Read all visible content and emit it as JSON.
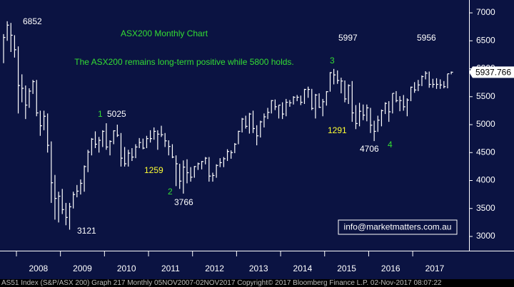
{
  "chart_data": {
    "type": "hlc",
    "title": "ASX200 Monthly Chart",
    "subtitle": "The ASX200 remains long-term positive while 5800 holds.",
    "footer": "AS51 Index (S&P/ASX 200) Graph 217  Monthly 05NOV2007-02NOV2017  Copyright© 2017 Bloomberg Finance L.P.  02-Nov-2017 08:07:22",
    "watermark": "info@marketmatters.com.au",
    "categories": [
      "2008",
      "2009",
      "2010",
      "2011",
      "2012",
      "2013",
      "2014",
      "2015",
      "2016",
      "2017"
    ],
    "ylim": [
      2745,
      7230
    ],
    "yticks": [
      3000,
      3500,
      4000,
      4500,
      5000,
      5500,
      6000,
      6500,
      7000
    ],
    "grid": false,
    "bar_color": "#ffffff",
    "background": "#0b1342",
    "last_price": 5937.766,
    "annotations": [
      {
        "text": "6852",
        "color": "#ffffff"
      },
      {
        "text": "5025",
        "color": "#ffffff"
      },
      {
        "text": "3121",
        "color": "#ffffff"
      },
      {
        "text": "3766",
        "color": "#ffffff"
      },
      {
        "text": "5997",
        "color": "#ffffff"
      },
      {
        "text": "5956",
        "color": "#ffffff"
      },
      {
        "text": "4706",
        "color": "#ffffff"
      },
      {
        "text": "1",
        "color": "#33dd33"
      },
      {
        "text": "2",
        "color": "#33dd33"
      },
      {
        "text": "3",
        "color": "#33dd33"
      },
      {
        "text": "4",
        "color": "#33dd33"
      },
      {
        "text": "1259",
        "color": "#ffff33"
      },
      {
        "text": "1291",
        "color": "#ffff33"
      }
    ],
    "series": [
      {
        "name": "AS51 Index",
        "high": [
          6620,
          6850,
          6820,
          6600,
          6400,
          5900,
          5700,
          5650,
          5800,
          5800,
          5250,
          5250,
          5200,
          4700,
          4100,
          3800,
          3850,
          3600,
          3600,
          3800,
          3920,
          4020,
          4270,
          4550,
          4760,
          4880,
          4780,
          4900,
          5025,
          4720,
          4900,
          5000,
          4850,
          4600,
          4550,
          4580,
          4650,
          4760,
          4750,
          4800,
          4900,
          4950,
          4900,
          4980,
          4850,
          4720,
          4650,
          4450,
          4300,
          4360,
          4380,
          4240,
          4260,
          4320,
          4350,
          4420,
          4420,
          4140,
          4290,
          4400,
          4420,
          4560,
          4540,
          4670,
          4890,
          5120,
          5160,
          5210,
          5250,
          4990,
          5070,
          5200,
          5300,
          5440,
          5450,
          5350,
          5400,
          5460,
          5440,
          5510,
          5530,
          5520,
          5640,
          5680,
          5640,
          5550,
          5560,
          5460,
          5600,
          5940,
          5997,
          5970,
          5840,
          5790,
          5720,
          5780,
          5350,
          5390,
          5360,
          5360,
          5300,
          5070,
          5160,
          5270,
          5400,
          5420,
          5560,
          5600,
          5510,
          5530,
          5470,
          5680,
          5760,
          5800,
          5880,
          5956,
          5950,
          5820,
          5830,
          5810,
          5780,
          5910,
          5950
        ],
        "low": [
          6100,
          6500,
          6300,
          6200,
          5200,
          5400,
          5100,
          5300,
          5550,
          5150,
          4800,
          4900,
          4500,
          3600,
          3300,
          3250,
          3400,
          3200,
          3121,
          3500,
          3700,
          3750,
          3800,
          4150,
          4450,
          4580,
          4500,
          4600,
          4550,
          4450,
          4650,
          4780,
          4250,
          4250,
          4250,
          4350,
          4400,
          4580,
          4560,
          4580,
          4680,
          4730,
          4550,
          4780,
          4600,
          4450,
          4400,
          3900,
          3850,
          3766,
          3950,
          3980,
          4050,
          4190,
          4200,
          4290,
          3980,
          3980,
          4050,
          4240,
          4240,
          4350,
          4390,
          4490,
          4650,
          4860,
          4930,
          4840,
          4850,
          4630,
          4770,
          4950,
          5100,
          5200,
          5260,
          5110,
          5100,
          5150,
          5320,
          5360,
          5420,
          5350,
          5370,
          5480,
          5260,
          5110,
          5300,
          5150,
          5340,
          5590,
          5720,
          5730,
          5560,
          5400,
          5370,
          5050,
          4920,
          4970,
          5080,
          5060,
          4850,
          4706,
          4870,
          4970,
          5190,
          5050,
          5200,
          5400,
          5240,
          5250,
          5150,
          5420,
          5570,
          5600,
          5690,
          5810,
          5660,
          5660,
          5640,
          5640,
          5650,
          5650,
          5900
        ],
        "close": [
          6560,
          6780,
          6600,
          6340,
          5700,
          5650,
          5350,
          5600,
          5770,
          5210,
          4980,
          5150,
          4630,
          3960,
          3680,
          3720,
          3480,
          3340,
          3530,
          3750,
          3810,
          3950,
          4250,
          4510,
          4740,
          4650,
          4720,
          4880,
          4600,
          4700,
          4890,
          4810,
          4400,
          4300,
          4490,
          4420,
          4600,
          4680,
          4580,
          4750,
          4750,
          4880,
          4830,
          4820,
          4710,
          4610,
          4420,
          4300,
          3990,
          4240,
          4140,
          4060,
          4250,
          4300,
          4340,
          4400,
          4080,
          4090,
          4270,
          4320,
          4390,
          4520,
          4500,
          4650,
          4880,
          5100,
          4970,
          5190,
          4930,
          4800,
          5050,
          5140,
          5220,
          5430,
          5320,
          5350,
          5190,
          5400,
          5390,
          5490,
          5490,
          5400,
          5630,
          5630,
          5290,
          5530,
          5310,
          5410,
          5590,
          5930,
          5890,
          5790,
          5780,
          5460,
          5700,
          5210,
          5020,
          5240,
          5170,
          5300,
          4990,
          4880,
          5080,
          5250,
          5380,
          5230,
          5560,
          5430,
          5430,
          5320,
          5440,
          5670,
          5620,
          5710,
          5860,
          5920,
          5720,
          5720,
          5720,
          5710,
          5680,
          5910,
          5938
        ]
      }
    ]
  }
}
